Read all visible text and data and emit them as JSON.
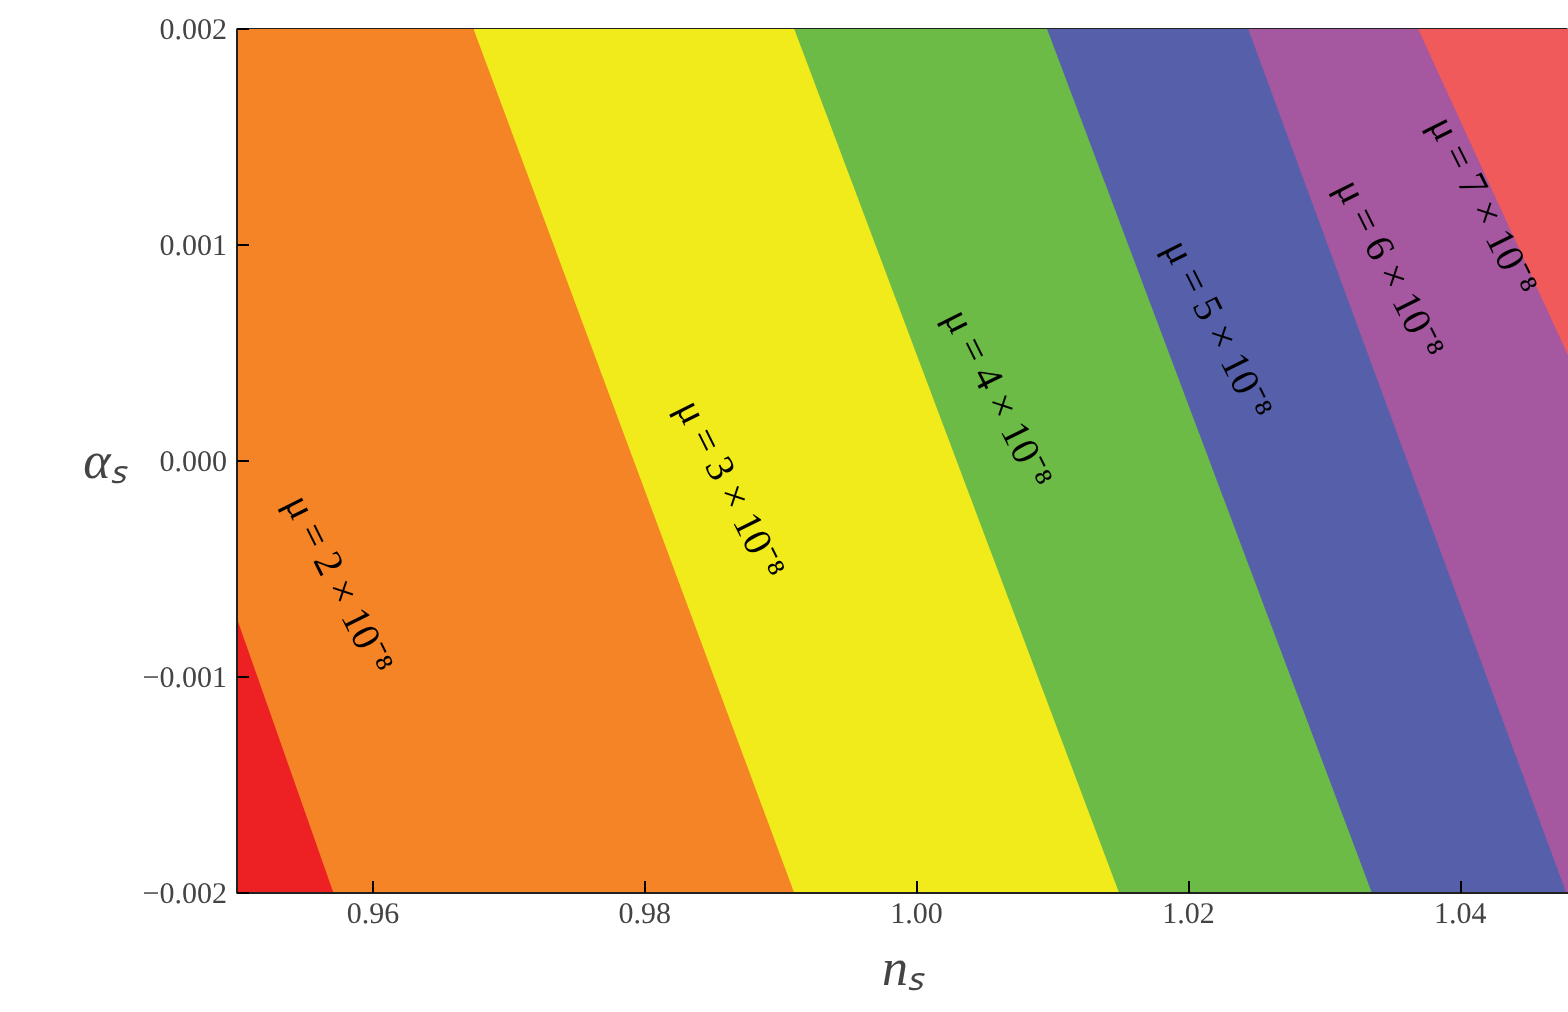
{
  "chart_data": {
    "type": "area",
    "xlabel": "nₛ",
    "ylabel": "αₛ",
    "xlim": [
      0.95,
      1.048
    ],
    "ylim": [
      -0.002,
      0.002
    ],
    "xticks": [
      {
        "value": 0.96,
        "label": "0.96"
      },
      {
        "value": 0.98,
        "label": "0.98"
      },
      {
        "value": 1.0,
        "label": "1.00"
      },
      {
        "value": 1.02,
        "label": "1.02"
      },
      {
        "value": 1.04,
        "label": "1.04"
      }
    ],
    "yticks": [
      {
        "value": -0.002,
        "label": "−0.002"
      },
      {
        "value": -0.001,
        "label": "−0.001"
      },
      {
        "value": 0.0,
        "label": "0.000"
      },
      {
        "value": 0.001,
        "label": "0.001"
      },
      {
        "value": 0.002,
        "label": "0.002"
      }
    ],
    "series": [
      {
        "color": "#ed2024",
        "x": [
          0.95,
          0.95,
          0.9571
        ],
        "values": [
          -0.002,
          -0.00073,
          -0.002
        ]
      },
      {
        "color": "#f58426",
        "x": [
          0.95,
          0.95,
          0.9674,
          0.991
        ],
        "values": [
          -0.002,
          0.002,
          0.002,
          -0.002
        ]
      },
      {
        "color": "#f2eb1b",
        "x": [
          0.9674,
          0.9674,
          0.991,
          1.0149
        ],
        "values": [
          -0.002,
          0.002,
          0.002,
          -0.002
        ]
      },
      {
        "color": "#6cbb46",
        "x": [
          0.991,
          0.991,
          1.0096,
          1.0335
        ],
        "values": [
          -0.002,
          0.002,
          0.002,
          -0.002
        ]
      },
      {
        "color": "#5660aa",
        "x": [
          1.0096,
          1.0096,
          1.0244,
          1.0478
        ],
        "values": [
          -0.002,
          0.002,
          0.002,
          -0.002
        ]
      },
      {
        "color": "#a5579f",
        "x": [
          1.0244,
          1.0244,
          1.0369,
          1.048,
          1.048
        ],
        "values": [
          -0.002,
          0.002,
          0.002,
          0.00048,
          -0.002
        ]
      },
      {
        "color": "#f05a5a",
        "x": [
          1.0369,
          1.0369,
          1.048,
          1.048
        ],
        "values": [
          -0.002,
          0.002,
          0.002,
          -0.002
        ]
      }
    ],
    "annotations": [
      "μ = 2 × 10⁻⁸",
      "μ = 3 × 10⁻⁸",
      "μ = 4 × 10⁻⁸",
      "μ = 5 × 10⁻⁸",
      "μ = 6 × 10⁻⁸",
      "μ = 7 × 10⁻⁸"
    ]
  }
}
